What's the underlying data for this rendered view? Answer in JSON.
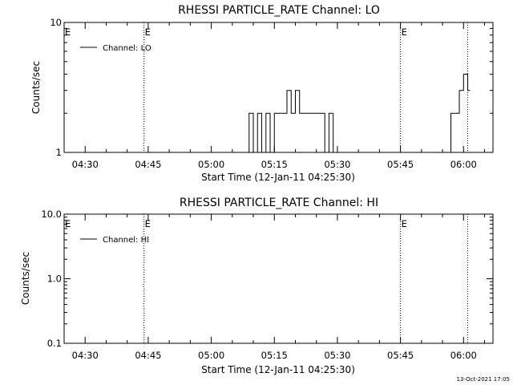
{
  "chart_data": [
    {
      "type": "line",
      "title": "RHESSI PARTICLE_RATE Channel: LO",
      "ylabel": "Counts/sec",
      "xlabel": "Start Time (12-Jan-11 04:25:30)",
      "yscale": "log",
      "ylim": [
        1,
        10
      ],
      "ytick_labels": [
        "1",
        "10"
      ],
      "xticks": [
        "04:30",
        "04:45",
        "05:00",
        "05:15",
        "05:30",
        "05:45",
        "06:00"
      ],
      "legend": "Channel: LO",
      "legend_position": "top-left",
      "event_markers": [
        {
          "time": "04:44",
          "label": "E"
        },
        {
          "time": "05:45",
          "label": "E"
        },
        {
          "time": "06:01",
          "label": ""
        }
      ],
      "series": [
        {
          "name": "Channel: LO",
          "x": [
            "05:09",
            "05:10",
            "05:11",
            "05:12",
            "05:13",
            "05:14",
            "05:15",
            "05:16",
            "05:17",
            "05:18",
            "05:19",
            "05:20",
            "05:21",
            "05:22",
            "05:23",
            "05:24",
            "05:25",
            "05:26",
            "05:27",
            "05:28",
            "05:29",
            "05:30",
            "05:31",
            "05:32",
            "05:33",
            "05:34",
            "05:35",
            "05:36",
            "05:37",
            "05:38",
            "05:39",
            "05:40",
            "05:41",
            "05:42",
            "05:43",
            "05:44",
            "05:45",
            "05:46",
            "05:47",
            "05:48",
            "05:49",
            "05:50",
            "05:51",
            "05:52",
            "05:53",
            "05:54",
            "05:55",
            "05:56",
            "05:57",
            "05:58",
            "05:59",
            "06:00",
            "06:01"
          ],
          "y": [
            2,
            1,
            2,
            1,
            2,
            1,
            2,
            2,
            2,
            3,
            2,
            3,
            2,
            2,
            2,
            2,
            2,
            2,
            1,
            2,
            1,
            1,
            1,
            1,
            1,
            1,
            1,
            1,
            1,
            1,
            1,
            1,
            1,
            1,
            1,
            1,
            1,
            1,
            1,
            1,
            1,
            1,
            1,
            1,
            1,
            1,
            1,
            1,
            2,
            2,
            3,
            4,
            3
          ]
        }
      ]
    },
    {
      "type": "line",
      "title": "RHESSI PARTICLE_RATE Channel: HI",
      "ylabel": "Counts/sec",
      "xlabel": "Start Time (12-Jan-11 04:25:30)",
      "yscale": "log",
      "ylim": [
        0.1,
        10.0
      ],
      "ytick_labels": [
        "0.1",
        "1.0",
        "10.0"
      ],
      "xticks": [
        "04:30",
        "04:45",
        "05:00",
        "05:15",
        "05:30",
        "05:45",
        "06:00"
      ],
      "legend": "Channel: HI",
      "legend_position": "top-left",
      "event_markers": [
        {
          "time": "04:44",
          "label": "E"
        },
        {
          "time": "05:45",
          "label": "E"
        },
        {
          "time": "06:01",
          "label": ""
        }
      ],
      "series": [
        {
          "name": "Channel: HI",
          "x": [],
          "y": []
        }
      ]
    }
  ],
  "timestamp": "13-Oct-2021 17:05"
}
